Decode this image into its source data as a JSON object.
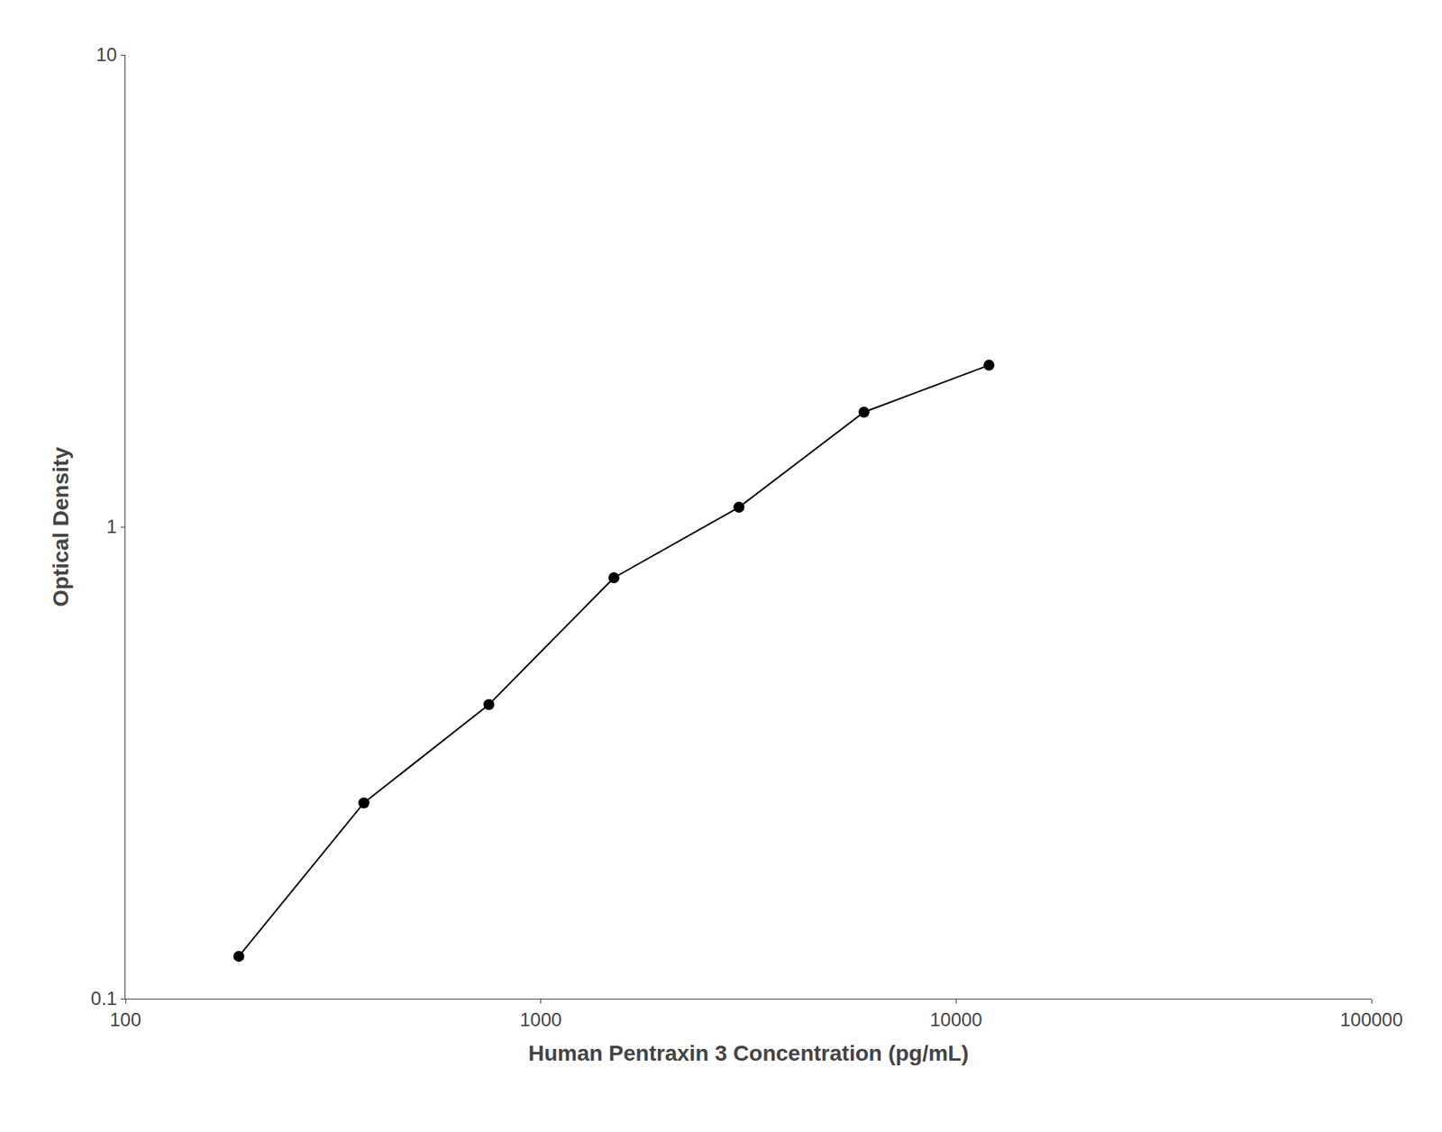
{
  "chart_data": {
    "type": "line",
    "x": [
      187.5,
      375,
      750,
      1500,
      3000,
      6000,
      12000
    ],
    "values": [
      0.123,
      0.26,
      0.42,
      0.78,
      1.1,
      1.75,
      2.2
    ],
    "xlabel": "Human Pentraxin 3 Concentration (pg/mL)",
    "ylabel": "Optical Density",
    "xlim": [
      100,
      100000
    ],
    "ylim": [
      0.1,
      10
    ],
    "xticks": [
      100,
      1000,
      10000,
      100000
    ],
    "yticks": [
      0.1,
      1,
      10
    ],
    "log": true,
    "grid": false,
    "color": "#000000",
    "marker": "circle"
  }
}
